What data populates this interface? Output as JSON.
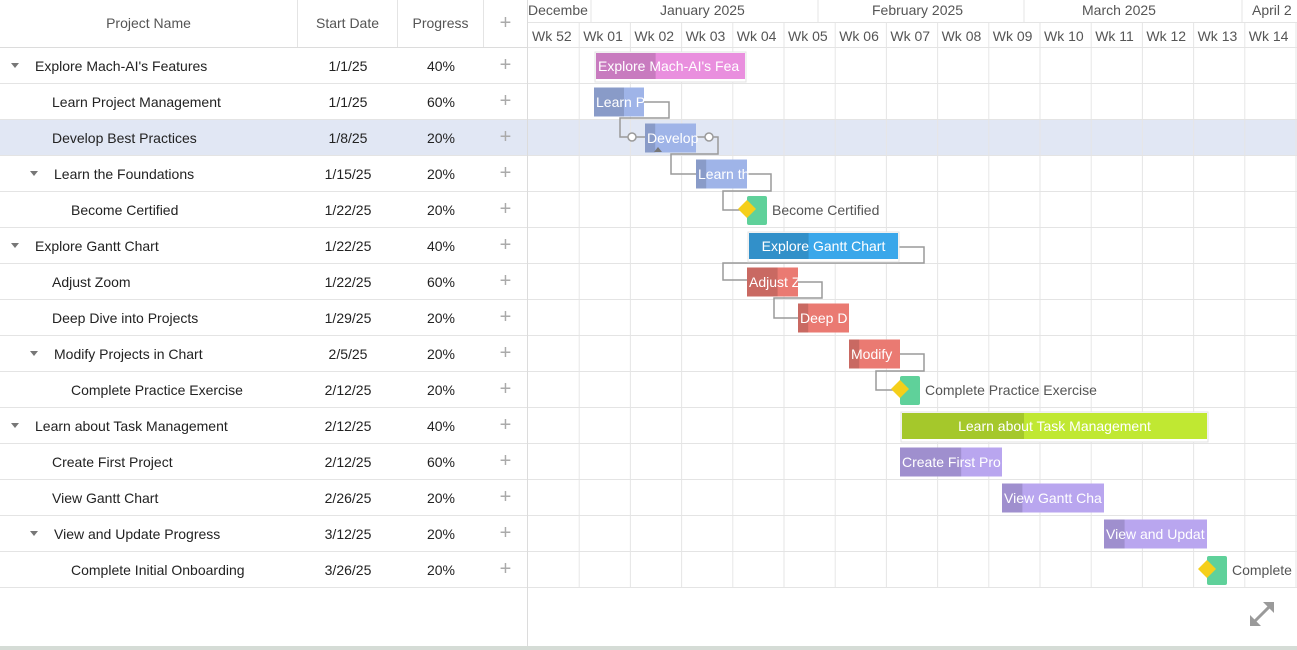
{
  "columns": {
    "name": "Project Name",
    "start": "Start Date",
    "progress": "Progress",
    "add": "+"
  },
  "timescale": {
    "months": [
      "Decembe",
      "January 2025",
      "February 2025",
      "March 2025",
      "April 2"
    ],
    "weeks": [
      "Wk 52",
      "Wk 01",
      "Wk 02",
      "Wk 03",
      "Wk 04",
      "Wk 05",
      "Wk 06",
      "Wk 07",
      "Wk 08",
      "Wk 09",
      "Wk 10",
      "Wk 11",
      "Wk 12",
      "Wk 13",
      "Wk 14"
    ]
  },
  "tasks": [
    {
      "name": "Explore Mach-AI's Features",
      "start": "1/1/25",
      "progress": "40%",
      "level": 0,
      "expandable": true,
      "bar_label": "Explore Mach-AI's Fea",
      "type": "summary",
      "color": "#e98fde",
      "progress_value": 0.4
    },
    {
      "name": "Learn Project Management",
      "start": "1/1/25",
      "progress": "60%",
      "level": 1,
      "expandable": false,
      "bar_label": "Learn P",
      "type": "task",
      "color": "#9fb4e8",
      "progress_value": 0.6
    },
    {
      "name": "Develop Best Practices",
      "start": "1/8/25",
      "progress": "20%",
      "level": 1,
      "expandable": false,
      "bar_label": "Develop",
      "type": "task",
      "color": "#9fb4e8",
      "progress_value": 0.2,
      "selected": true
    },
    {
      "name": "Learn the Foundations",
      "start": "1/15/25",
      "progress": "20%",
      "level": 1,
      "expandable": true,
      "bar_label": "Learn th",
      "type": "task",
      "color": "#9fb4e8",
      "progress_value": 0.2
    },
    {
      "name": "Become Certified",
      "start": "1/22/25",
      "progress": "20%",
      "level": 2,
      "expandable": false,
      "bar_label": "Become Certified",
      "type": "milestone",
      "color": "#5fd19a"
    },
    {
      "name": "Explore Gantt Chart",
      "start": "1/22/25",
      "progress": "40%",
      "level": 0,
      "expandable": true,
      "bar_label": "Explore Gantt Chart",
      "type": "summary",
      "color": "#3aa7ea",
      "progress_value": 0.4
    },
    {
      "name": "Adjust Zoom",
      "start": "1/22/25",
      "progress": "60%",
      "level": 1,
      "expandable": false,
      "bar_label": "Adjust Z",
      "type": "task",
      "color": "#ea7a72",
      "progress_value": 0.6
    },
    {
      "name": "Deep Dive into Projects",
      "start": "1/29/25",
      "progress": "20%",
      "level": 1,
      "expandable": false,
      "bar_label": "Deep D",
      "type": "task",
      "color": "#ea7a72",
      "progress_value": 0.2
    },
    {
      "name": "Modify Projects in Chart",
      "start": "2/5/25",
      "progress": "20%",
      "level": 1,
      "expandable": true,
      "bar_label": "Modify",
      "type": "task",
      "color": "#ea7a72",
      "progress_value": 0.2
    },
    {
      "name": "Complete Practice Exercise",
      "start": "2/12/25",
      "progress": "20%",
      "level": 2,
      "expandable": false,
      "bar_label": "Complete Practice Exercise",
      "type": "milestone",
      "color": "#5fd19a"
    },
    {
      "name": "Learn about Task Management",
      "start": "2/12/25",
      "progress": "40%",
      "level": 0,
      "expandable": true,
      "bar_label": "Learn about Task Management",
      "type": "summary",
      "color": "#c0e832",
      "progress_value": 0.4
    },
    {
      "name": "Create First Project",
      "start": "2/12/25",
      "progress": "60%",
      "level": 1,
      "expandable": false,
      "bar_label": "Create First Pro",
      "type": "task",
      "color": "#b9a6ef",
      "progress_value": 0.6
    },
    {
      "name": "View Gantt Chart",
      "start": "2/26/25",
      "progress": "20%",
      "level": 1,
      "expandable": false,
      "bar_label": "View Gantt Cha",
      "type": "task",
      "color": "#b9a6ef",
      "progress_value": 0.2
    },
    {
      "name": "View and Update Progress",
      "start": "3/12/25",
      "progress": "20%",
      "level": 1,
      "expandable": true,
      "bar_label": "View and Updat",
      "type": "task",
      "color": "#b9a6ef",
      "progress_value": 0.2
    },
    {
      "name": "Complete Initial Onboarding",
      "start": "3/26/25",
      "progress": "20%",
      "level": 2,
      "expandable": false,
      "bar_label": "Complete",
      "type": "milestone",
      "color": "#5fd19a"
    }
  ],
  "colors": {
    "milestone_diamond": "#f5cf1a",
    "connector": "#9a9a9a",
    "selected_row": "#e1e7f4"
  },
  "icons": {
    "expand": "expand-arrows-icon",
    "caret": "caret-down-icon",
    "add": "plus-icon"
  }
}
